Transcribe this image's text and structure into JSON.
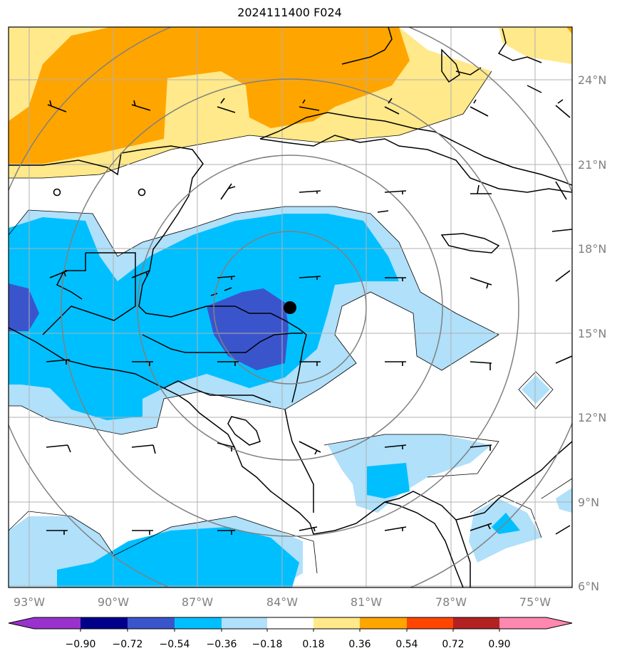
{
  "title": "2024111400 F024",
  "lon_labels": [
    "93°W",
    "90°W",
    "87°W",
    "84°W",
    "81°W",
    "78°W",
    "75°W"
  ],
  "lat_labels": [
    "24°N",
    "21°N",
    "18°N",
    "15°N",
    "12°N",
    "9°N",
    "6°N"
  ],
  "colorbar": {
    "ticks": [
      "−0.90",
      "−0.72",
      "−0.54",
      "−0.36",
      "−0.18",
      "0.18",
      "0.36",
      "0.54",
      "0.72",
      "0.90"
    ],
    "colors": [
      "#9932cc",
      "#00008b",
      "#3a55cc",
      "#00bfff",
      "#b0e0fa",
      "#ffffff",
      "#ffe98a",
      "#ffa500",
      "#ff4500",
      "#b22222",
      "#ff88b0"
    ]
  },
  "legend_colors": {
    "strong_neg": "#3a55cc",
    "mid_neg": "#00bfff",
    "weak_neg": "#b0e0fa",
    "weak_pos": "#ffe98a",
    "mid_pos": "#ffa500"
  },
  "storm_center": {
    "lon": "84°W",
    "lat": "15.9°N"
  }
}
